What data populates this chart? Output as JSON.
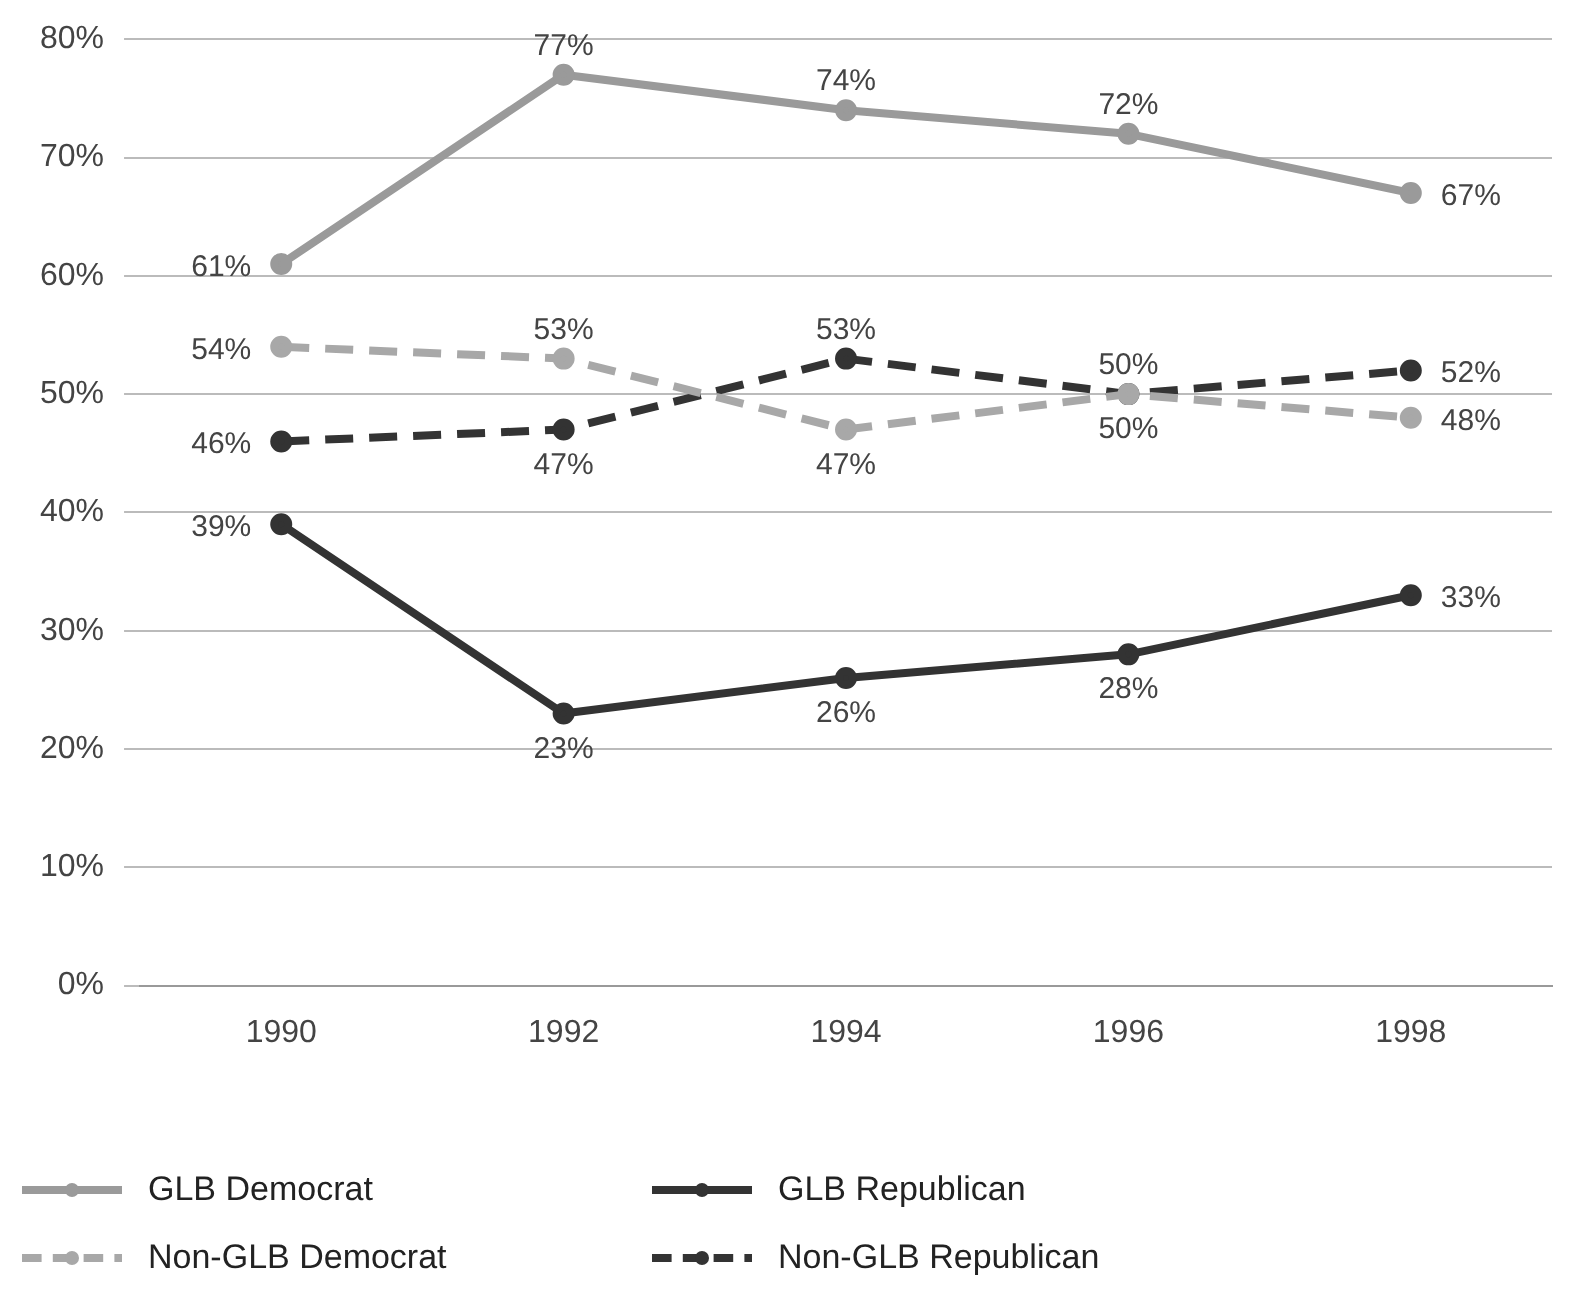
{
  "chart_data": {
    "type": "line",
    "categories": [
      "1990",
      "1992",
      "1994",
      "1996",
      "1998"
    ],
    "series": [
      {
        "name": "GLB Democrat",
        "color": "#9a9a9a",
        "line_style": "solid",
        "values": [
          61,
          77,
          74,
          72,
          67
        ],
        "value_labels": [
          "61%",
          "77%",
          "74%",
          "72%",
          "67%"
        ]
      },
      {
        "name": "GLB Republican",
        "color": "#333333",
        "line_style": "solid",
        "values": [
          39,
          23,
          26,
          28,
          33
        ],
        "value_labels": [
          "39%",
          "23%",
          "26%",
          "28%",
          "33%"
        ]
      },
      {
        "name": "Non-GLB Democrat",
        "color": "#a8a8a8",
        "line_style": "dashed",
        "values": [
          54,
          53,
          47,
          50,
          48
        ],
        "value_labels": [
          "54%",
          "53%",
          "47%",
          "50%",
          "48%"
        ]
      },
      {
        "name": "Non-GLB Republican",
        "color": "#333333",
        "line_style": "dashed",
        "values": [
          46,
          47,
          53,
          50,
          52
        ],
        "value_labels": [
          "46%",
          "47%",
          "53%",
          "50%",
          "52%"
        ]
      }
    ],
    "ylim": [
      0,
      80
    ],
    "yticks": [
      {
        "value": 0,
        "label": "0%"
      },
      {
        "value": 10,
        "label": "10%"
      },
      {
        "value": 20,
        "label": "20%"
      },
      {
        "value": 30,
        "label": "30%"
      },
      {
        "value": 40,
        "label": "40%"
      },
      {
        "value": 50,
        "label": "50%"
      },
      {
        "value": 60,
        "label": "60%"
      },
      {
        "value": 70,
        "label": "70%"
      },
      {
        "value": 80,
        "label": "80%"
      }
    ],
    "grid": "y",
    "legend": "bottom",
    "marker": "circle"
  }
}
